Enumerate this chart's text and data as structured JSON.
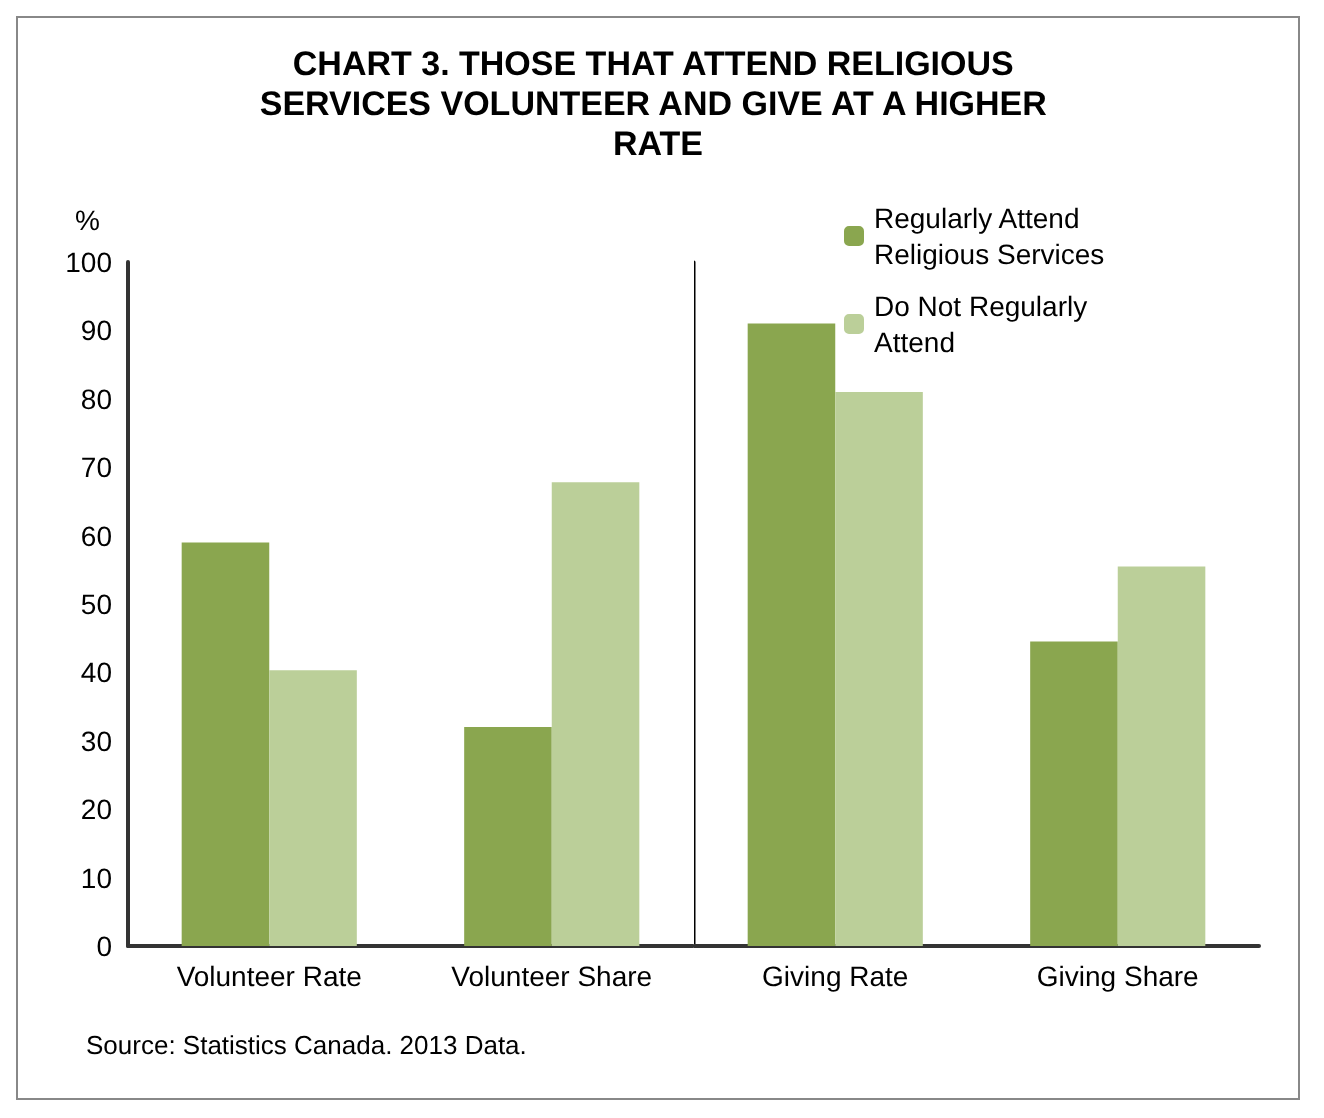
{
  "chart_data": [
    {
      "type": "bar",
      "title": "CHART 3. THOSE THAT ATTEND RELIGIOUS SERVICES VOLUNTEER AND GIVE AT A HIGHER RATE",
      "ylabel": "%",
      "categories": [
        "Volunteer Rate",
        "Volunteer Share"
      ],
      "series": [
        {
          "color": "#8aa64f",
          "values": [
            59,
            32
          ]
        },
        {
          "color": "#bbcf99",
          "values": [
            40.3,
            67.8
          ]
        }
      ],
      "ylim": [
        0,
        100
      ],
      "yticks": [
        0,
        10,
        20,
        30,
        40,
        50,
        60,
        70,
        80,
        90,
        100
      ],
      "annotations": [
        "Source: Statistics Canada. 2013 Data."
      ]
    },
    {
      "type": "bar",
      "categories": [
        "Giving Rate",
        "Giving Share"
      ],
      "series": [
        {
          "name": "Regularly Attend Religious Services",
          "color": "#8aa64f",
          "values": [
            91,
            44.5
          ]
        },
        {
          "name": "Do Not Regularly Attend",
          "color": "#bbcf99",
          "values": [
            81,
            55.5
          ]
        }
      ],
      "ylim": [
        0,
        100
      ],
      "tick_labels": "x",
      "legend": "top right"
    }
  ]
}
